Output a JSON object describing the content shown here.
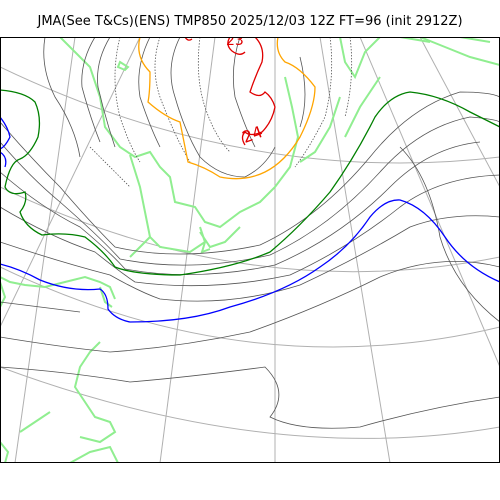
{
  "title": "JMA(See T&Cs)(ENS) TMP850 2025/12/03 12Z FT=96 (init 2912Z)",
  "contour_labels": {
    "red_top": "23",
    "red_right": "24"
  },
  "colors": {
    "coastline": "#90ee90",
    "grid": "#b0b0b0",
    "contour": "#555555",
    "orange": "#ffa500",
    "red": "#e00000",
    "green": "#008000",
    "blue": "#0000ff"
  }
}
